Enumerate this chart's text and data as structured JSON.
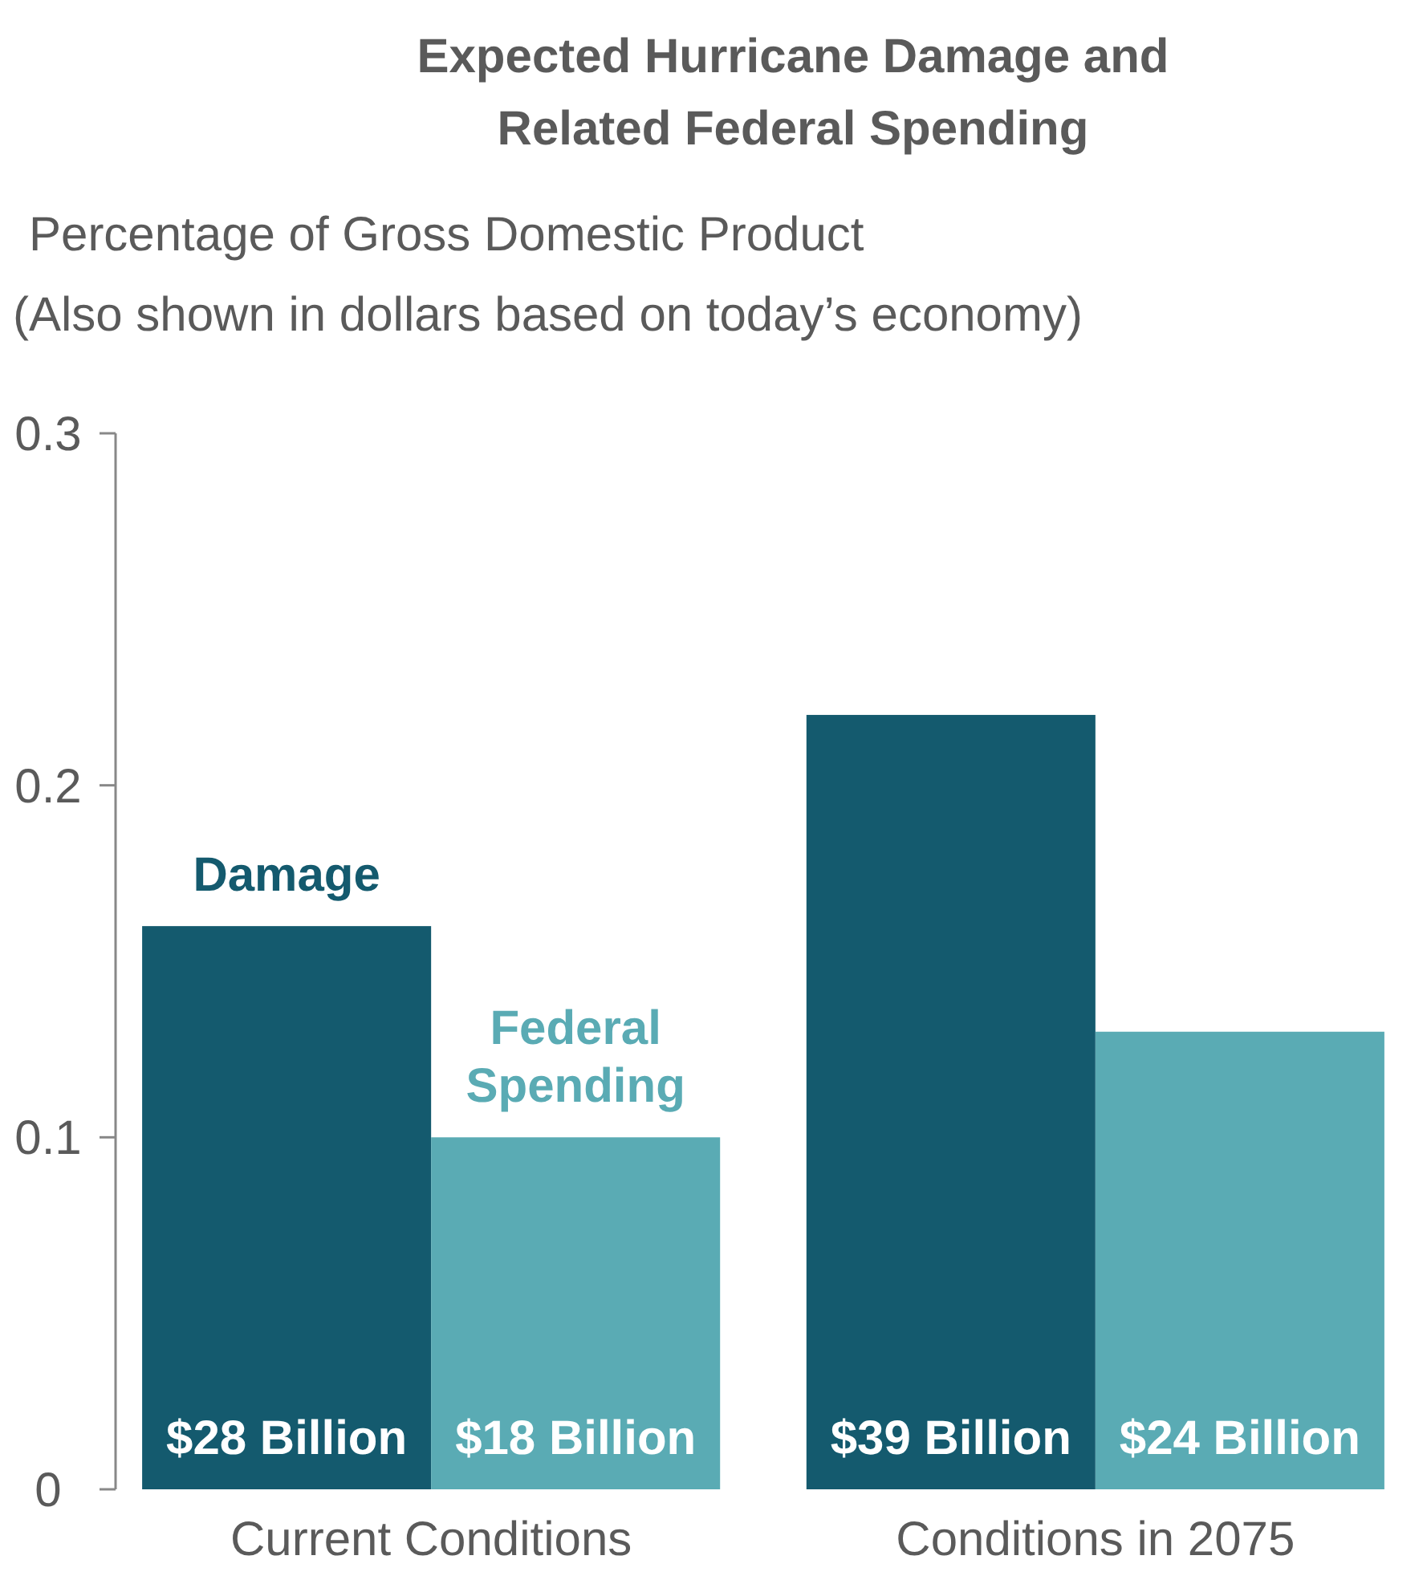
{
  "chart_data": {
    "type": "bar",
    "title": "Expected Hurricane Damage and\nRelated Federal Spending",
    "ylabel": "Percentage of Gross Domestic Product\n(Also shown in dollars based on today’s economy)",
    "categories": [
      "Current Conditions",
      "Conditions in 2075"
    ],
    "series": [
      {
        "name": "Damage",
        "color": "#145a6e",
        "values": [
          0.16,
          0.22
        ]
      },
      {
        "name": "Federal Spending",
        "color": "#5aabb4",
        "values": [
          0.1,
          0.13
        ]
      }
    ],
    "annotations": [
      {
        "text": "$28 Billion",
        "x": "Current Conditions",
        "y": 0.01
      },
      {
        "text": "$18 Billion",
        "x": "Current Conditions",
        "y": 0.01
      },
      {
        "text": "$39 Billion",
        "x": "Conditions in 2075",
        "y": 0.01
      },
      {
        "text": "$24 Billion",
        "x": "Conditions in 2075",
        "y": 0.01
      }
    ],
    "ylim": [
      0,
      0.3
    ],
    "yticks": [
      0,
      0.1,
      0.2,
      0.3
    ],
    "grid": false
  }
}
